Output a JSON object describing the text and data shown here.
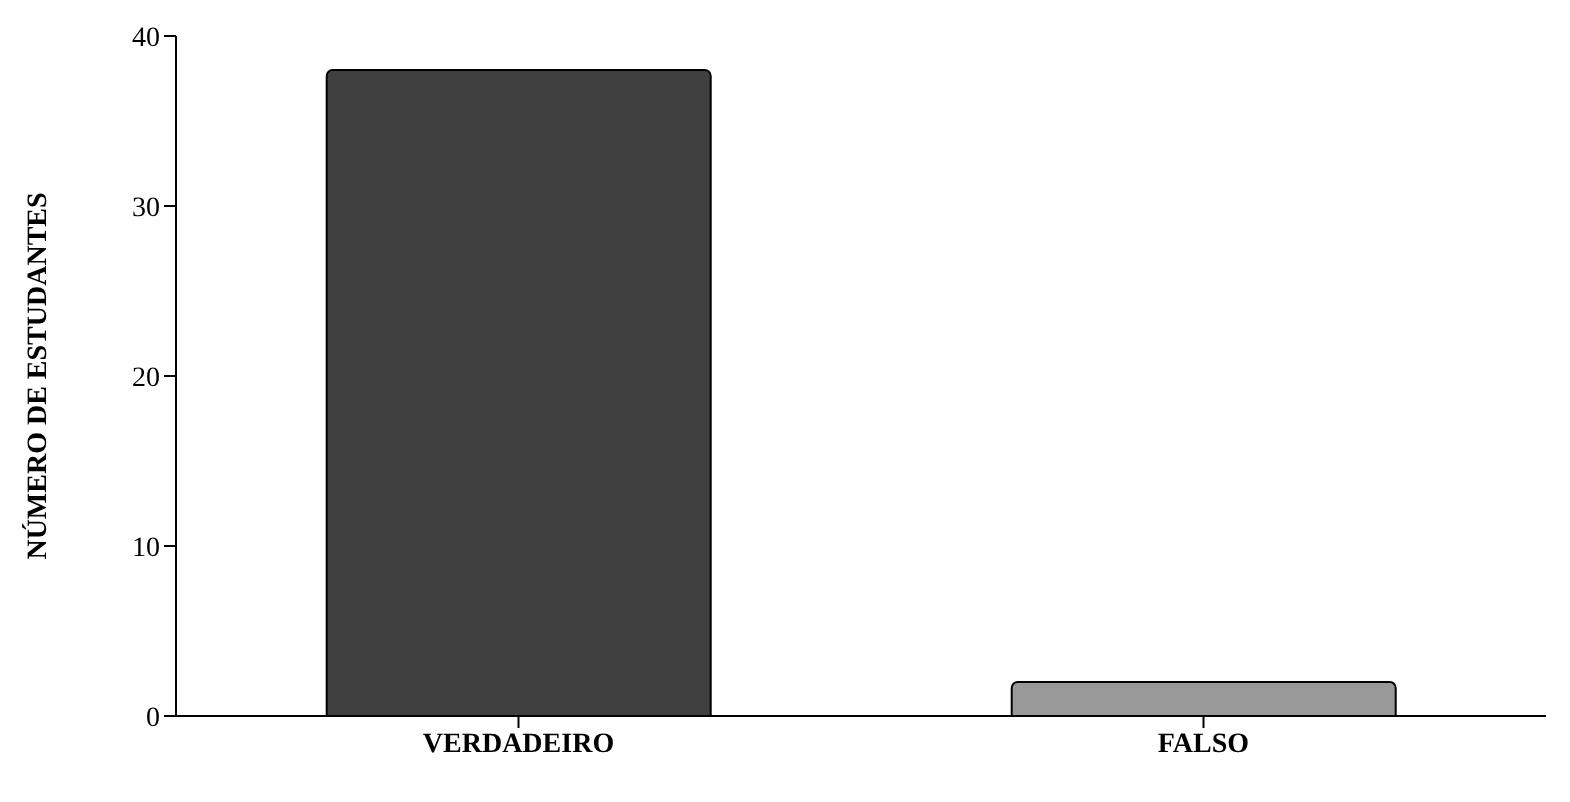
{
  "chart_data": {
    "type": "bar",
    "ylabel": "NÚMERO DE ESTUDANTES",
    "categories": [
      "VERDADEIRO",
      "FALSO"
    ],
    "values": [
      38,
      2
    ],
    "colors": [
      "#404040",
      "#999999"
    ],
    "ylim": [
      0,
      40
    ],
    "yticks": [
      0,
      10,
      20,
      30,
      40
    ],
    "grid": false,
    "legend": false
  }
}
